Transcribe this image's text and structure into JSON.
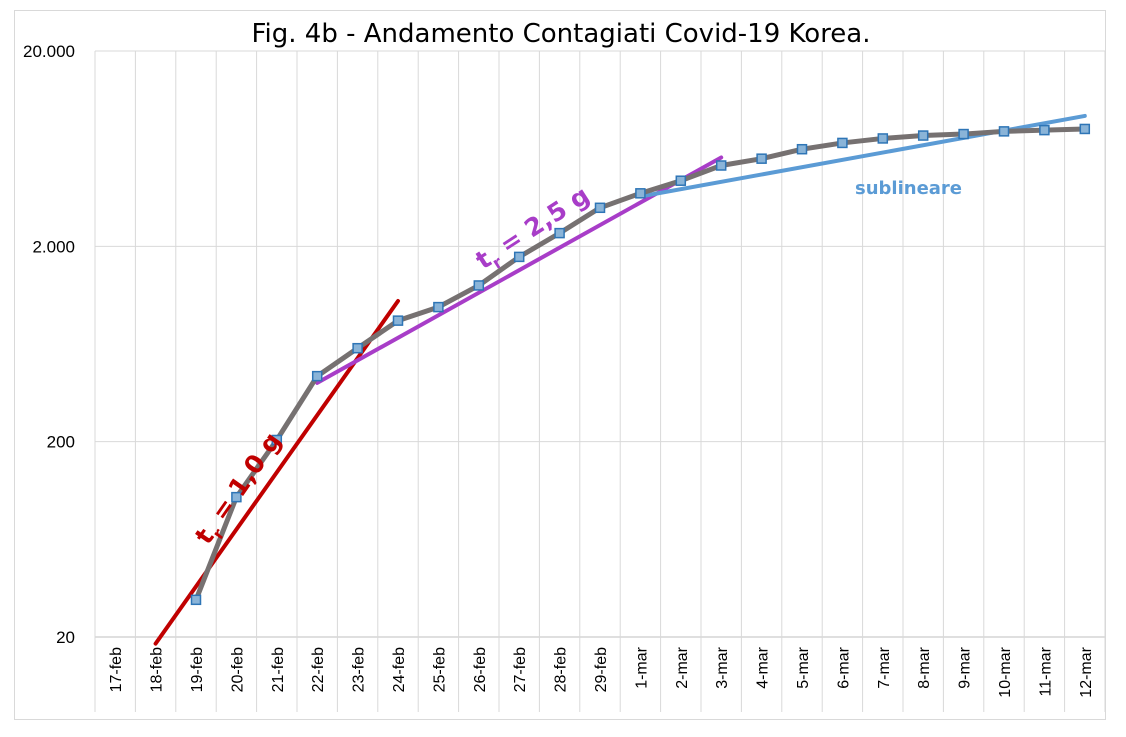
{
  "chart_data": {
    "type": "line",
    "title": "Fig. 4b - Andamento Contagiati Covid-19 Korea.",
    "xlabel": "",
    "ylabel": "",
    "yscale": "log",
    "ylim": [
      20,
      20000
    ],
    "yticks": [
      20,
      200,
      2000,
      20000
    ],
    "ytick_labels": [
      "20",
      "200",
      "2.000",
      "20.000"
    ],
    "grid": true,
    "categories": [
      "17-feb",
      "18-feb",
      "19-feb",
      "20-feb",
      "21-feb",
      "22-feb",
      "23-feb",
      "24-feb",
      "25-feb",
      "26-feb",
      "27-feb",
      "28-feb",
      "29-feb",
      "1-mar",
      "2-mar",
      "3-mar",
      "4-mar",
      "5-mar",
      "6-mar",
      "7-mar",
      "8-mar",
      "9-mar",
      "10-mar",
      "11-mar",
      "12-mar"
    ],
    "series": [
      {
        "name": "Contagiati",
        "color": "#767171",
        "marker_fill": "#8ab4d8",
        "marker_edge": "#2e75b6",
        "values": [
          null,
          null,
          31,
          104,
          204,
          433,
          602,
          833,
          977,
          1261,
          1766,
          2337,
          3150,
          3736,
          4335,
          5186,
          5621,
          6284,
          6767,
          7134,
          7382,
          7513,
          7755,
          7869,
          7979
        ]
      }
    ],
    "trend_lines": [
      {
        "name": "trend-red",
        "color": "#c00000",
        "x": [
          "18-feb",
          "24-feb"
        ],
        "y": [
          18.5,
          1050
        ]
      },
      {
        "name": "trend-purple",
        "color": "#a83dc8",
        "x": [
          "22-feb",
          "3-mar"
        ],
        "y": [
          400,
          5700
        ]
      },
      {
        "name": "trend-blue",
        "color": "#5b9bd5",
        "x": [
          "1-mar",
          "12-mar"
        ],
        "y": [
          3600,
          9300
        ]
      }
    ],
    "annotations": {
      "red": {
        "main": "t",
        "sub": "r",
        "rest": " = 1,0 g",
        "color": "#c00000"
      },
      "purple": {
        "main": "t",
        "sub": "r",
        "rest": " = 2,5 g",
        "color": "#a83dc8"
      },
      "blue": {
        "text": "sublineare",
        "color": "#5b9bd5"
      }
    }
  }
}
